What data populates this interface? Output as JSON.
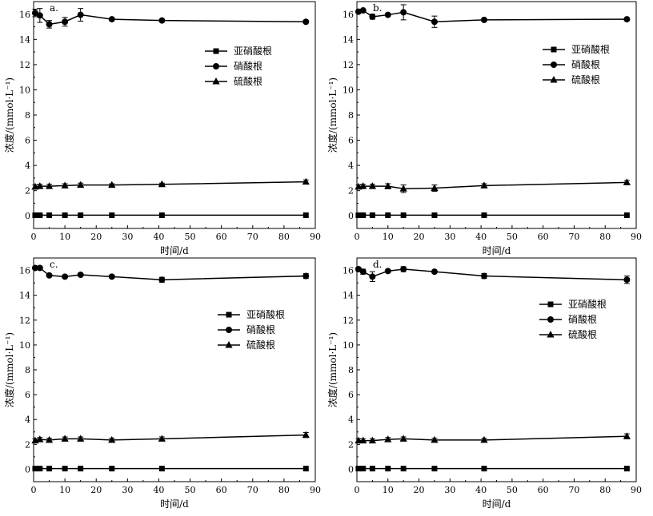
{
  "chart_data": [
    {
      "type": "line",
      "panel_label": "a.",
      "xlabel": "时间/d",
      "ylabel": "浓度/(mmol·L⁻¹)",
      "xlim": [
        0,
        90
      ],
      "ylim": [
        -1,
        17
      ],
      "x_ticks": [
        0,
        10,
        20,
        30,
        40,
        50,
        60,
        70,
        80,
        90
      ],
      "y_ticks": [
        0,
        2,
        4,
        6,
        8,
        10,
        12,
        14,
        16
      ],
      "legend_position": "upper-right",
      "series": [
        {
          "name": "亚硝酸根",
          "marker": "square",
          "x": [
            0.5,
            2,
            5,
            10,
            15,
            25,
            41,
            87
          ],
          "y": [
            0.05,
            0.05,
            0.05,
            0.05,
            0.05,
            0.05,
            0.05,
            0.05
          ],
          "err": [
            0,
            0,
            0,
            0,
            0,
            0,
            0,
            0
          ]
        },
        {
          "name": "硝酸根",
          "marker": "circle",
          "x": [
            0.5,
            2,
            5,
            10,
            15,
            25,
            41,
            87
          ],
          "y": [
            16.1,
            15.9,
            15.2,
            15.4,
            15.95,
            15.6,
            15.5,
            15.4
          ],
          "err": [
            0.3,
            0.55,
            0.3,
            0.35,
            0.5,
            0,
            0.1,
            0.1
          ]
        },
        {
          "name": "硫酸根",
          "marker": "triangle",
          "x": [
            0.5,
            2,
            5,
            10,
            15,
            25,
            41,
            87
          ],
          "y": [
            2.3,
            2.35,
            2.35,
            2.4,
            2.45,
            2.45,
            2.5,
            2.7
          ],
          "err": [
            0.15,
            0.15,
            0.15,
            0.15,
            0.15,
            0.1,
            0.1,
            0.15
          ]
        }
      ]
    },
    {
      "type": "line",
      "panel_label": "b.",
      "xlabel": "时间/d",
      "ylabel": "浓度/(mmol·L⁻¹)",
      "xlim": [
        0,
        90
      ],
      "ylim": [
        -1,
        17
      ],
      "x_ticks": [
        0,
        10,
        20,
        30,
        40,
        50,
        60,
        70,
        80,
        90
      ],
      "y_ticks": [
        0,
        2,
        4,
        6,
        8,
        10,
        12,
        14,
        16
      ],
      "legend_position": "upper-right",
      "series": [
        {
          "name": "亚硝酸根",
          "marker": "square",
          "x": [
            0.5,
            2,
            5,
            10,
            15,
            25,
            41,
            87
          ],
          "y": [
            0.05,
            0.05,
            0.05,
            0.05,
            0.05,
            0.05,
            0.05,
            0.05
          ],
          "err": [
            0,
            0,
            0,
            0,
            0,
            0,
            0,
            0
          ]
        },
        {
          "name": "硝酸根",
          "marker": "circle",
          "x": [
            0.5,
            2,
            5,
            10,
            15,
            25,
            41,
            87
          ],
          "y": [
            16.2,
            16.3,
            15.8,
            15.95,
            16.15,
            15.4,
            15.55,
            15.6
          ],
          "err": [
            0.1,
            0.1,
            0.2,
            0.1,
            0.6,
            0.45,
            0.1,
            0.1
          ]
        },
        {
          "name": "硫酸根",
          "marker": "triangle",
          "x": [
            0.5,
            2,
            5,
            10,
            15,
            25,
            41,
            87
          ],
          "y": [
            2.3,
            2.35,
            2.35,
            2.35,
            2.15,
            2.2,
            2.4,
            2.65
          ],
          "err": [
            0.15,
            0.15,
            0.15,
            0.2,
            0.3,
            0.25,
            0.15,
            0.15
          ]
        }
      ]
    },
    {
      "type": "line",
      "panel_label": "c.",
      "xlabel": "时间/d",
      "ylabel": "浓度/(mmol·L⁻¹)",
      "xlim": [
        0,
        90
      ],
      "ylim": [
        -1,
        17
      ],
      "x_ticks": [
        0,
        10,
        20,
        30,
        40,
        50,
        60,
        70,
        80,
        90
      ],
      "y_ticks": [
        0,
        2,
        4,
        6,
        8,
        10,
        12,
        14,
        16
      ],
      "legend_position": "center-right",
      "series": [
        {
          "name": "亚硝酸根",
          "marker": "square",
          "x": [
            0.5,
            2,
            5,
            10,
            15,
            25,
            41,
            87
          ],
          "y": [
            0.05,
            0.05,
            0.05,
            0.05,
            0.05,
            0.05,
            0.05,
            0.05
          ],
          "err": [
            0,
            0,
            0,
            0,
            0,
            0,
            0,
            0
          ]
        },
        {
          "name": "硝酸根",
          "marker": "circle",
          "x": [
            0.5,
            2,
            5,
            10,
            15,
            25,
            41,
            87
          ],
          "y": [
            16.2,
            16.2,
            15.6,
            15.5,
            15.65,
            15.5,
            15.25,
            15.55
          ],
          "err": [
            0.1,
            0.1,
            0.1,
            0.1,
            0.1,
            0.1,
            0.2,
            0.2
          ]
        },
        {
          "name": "硫酸根",
          "marker": "triangle",
          "x": [
            0.5,
            2,
            5,
            10,
            15,
            25,
            41,
            87
          ],
          "y": [
            2.3,
            2.4,
            2.35,
            2.45,
            2.45,
            2.35,
            2.45,
            2.75
          ],
          "err": [
            0.15,
            0.15,
            0.15,
            0.15,
            0.15,
            0.15,
            0.15,
            0.2
          ]
        }
      ]
    },
    {
      "type": "line",
      "panel_label": "d.",
      "xlabel": "时间/d",
      "ylabel": "浓度/(mmol·L⁻¹)",
      "xlim": [
        0,
        90
      ],
      "ylim": [
        -1,
        17
      ],
      "x_ticks": [
        0,
        10,
        20,
        30,
        40,
        50,
        60,
        70,
        80,
        90
      ],
      "y_ticks": [
        0,
        2,
        4,
        6,
        8,
        10,
        12,
        14,
        16
      ],
      "legend_position": "upper-right",
      "series": [
        {
          "name": "亚硝酸根",
          "marker": "square",
          "x": [
            0.5,
            2,
            5,
            10,
            15,
            25,
            41,
            87
          ],
          "y": [
            0.05,
            0.05,
            0.05,
            0.05,
            0.05,
            0.05,
            0.05,
            0.05
          ],
          "err": [
            0,
            0,
            0,
            0,
            0,
            0,
            0,
            0
          ]
        },
        {
          "name": "硝酸根",
          "marker": "circle",
          "x": [
            0.5,
            2,
            5,
            10,
            15,
            25,
            41,
            87
          ],
          "y": [
            16.1,
            15.9,
            15.5,
            15.95,
            16.1,
            15.9,
            15.55,
            15.25
          ],
          "err": [
            0.15,
            0.2,
            0.4,
            0.1,
            0.2,
            0.1,
            0.2,
            0.3
          ]
        },
        {
          "name": "硫酸根",
          "marker": "triangle",
          "x": [
            0.5,
            2,
            5,
            10,
            15,
            25,
            41,
            87
          ],
          "y": [
            2.3,
            2.3,
            2.3,
            2.4,
            2.45,
            2.35,
            2.35,
            2.65
          ],
          "err": [
            0.15,
            0.15,
            0.15,
            0.15,
            0.15,
            0.15,
            0.15,
            0.2
          ]
        }
      ]
    }
  ]
}
